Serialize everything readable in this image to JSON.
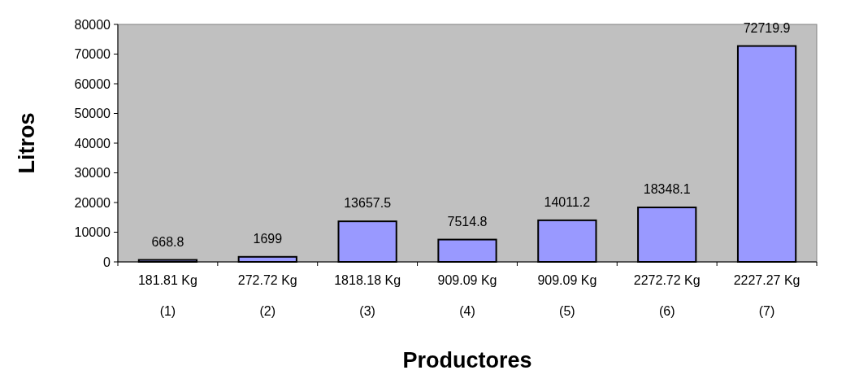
{
  "chart_data": {
    "type": "bar",
    "xlabel": "Productores",
    "ylabel": "Litros",
    "categories": [
      "181.81 Kg\n(1)",
      "272.72 Kg\n(2)",
      "1818.18 Kg\n(3)",
      "909.09 Kg\n(4)",
      "909.09 Kg\n(5)",
      "2272.72 Kg\n(6)",
      "2227.27 Kg\n(7)"
    ],
    "values": [
      668.8,
      1699,
      13657.5,
      7514.8,
      14011.2,
      18348.1,
      72719.9
    ],
    "color": "#9999ff",
    "ylim": [
      0,
      80000
    ],
    "yticks": [
      0,
      10000,
      20000,
      30000,
      40000,
      50000,
      60000,
      70000,
      80000
    ],
    "data_labels": true
  }
}
